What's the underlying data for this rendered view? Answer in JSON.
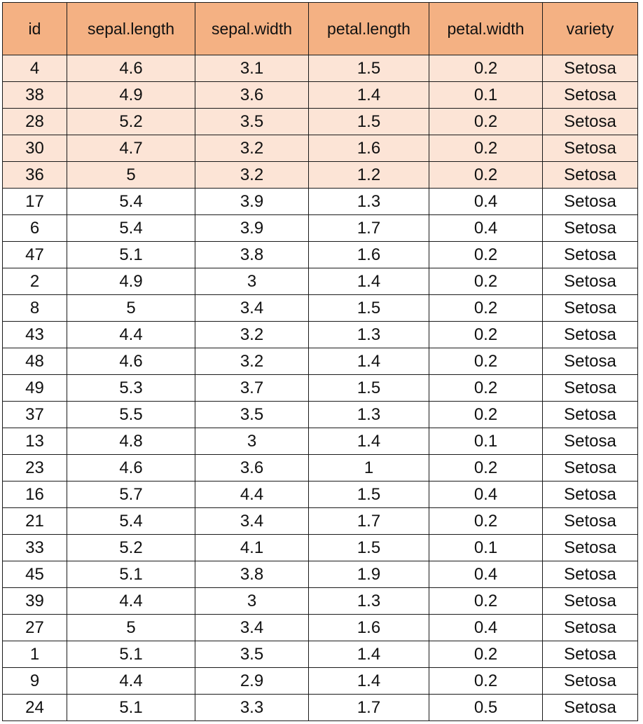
{
  "table": {
    "columns": [
      "id",
      "sepal.length",
      "sepal.width",
      "petal.length",
      "petal.width",
      "variety"
    ],
    "header_color": "#f4b183",
    "highlight_color": "#fce4d6",
    "rows": [
      {
        "highlight": true,
        "cells": [
          "4",
          "4.6",
          "3.1",
          "1.5",
          "0.2",
          "Setosa"
        ]
      },
      {
        "highlight": true,
        "cells": [
          "38",
          "4.9",
          "3.6",
          "1.4",
          "0.1",
          "Setosa"
        ]
      },
      {
        "highlight": true,
        "cells": [
          "28",
          "5.2",
          "3.5",
          "1.5",
          "0.2",
          "Setosa"
        ]
      },
      {
        "highlight": true,
        "cells": [
          "30",
          "4.7",
          "3.2",
          "1.6",
          "0.2",
          "Setosa"
        ]
      },
      {
        "highlight": true,
        "cells": [
          "36",
          "5",
          "3.2",
          "1.2",
          "0.2",
          "Setosa"
        ]
      },
      {
        "highlight": false,
        "cells": [
          "17",
          "5.4",
          "3.9",
          "1.3",
          "0.4",
          "Setosa"
        ]
      },
      {
        "highlight": false,
        "cells": [
          "6",
          "5.4",
          "3.9",
          "1.7",
          "0.4",
          "Setosa"
        ]
      },
      {
        "highlight": false,
        "cells": [
          "47",
          "5.1",
          "3.8",
          "1.6",
          "0.2",
          "Setosa"
        ]
      },
      {
        "highlight": false,
        "cells": [
          "2",
          "4.9",
          "3",
          "1.4",
          "0.2",
          "Setosa"
        ]
      },
      {
        "highlight": false,
        "cells": [
          "8",
          "5",
          "3.4",
          "1.5",
          "0.2",
          "Setosa"
        ]
      },
      {
        "highlight": false,
        "cells": [
          "43",
          "4.4",
          "3.2",
          "1.3",
          "0.2",
          "Setosa"
        ]
      },
      {
        "highlight": false,
        "cells": [
          "48",
          "4.6",
          "3.2",
          "1.4",
          "0.2",
          "Setosa"
        ]
      },
      {
        "highlight": false,
        "cells": [
          "49",
          "5.3",
          "3.7",
          "1.5",
          "0.2",
          "Setosa"
        ]
      },
      {
        "highlight": false,
        "cells": [
          "37",
          "5.5",
          "3.5",
          "1.3",
          "0.2",
          "Setosa"
        ]
      },
      {
        "highlight": false,
        "cells": [
          "13",
          "4.8",
          "3",
          "1.4",
          "0.1",
          "Setosa"
        ]
      },
      {
        "highlight": false,
        "cells": [
          "23",
          "4.6",
          "3.6",
          "1",
          "0.2",
          "Setosa"
        ]
      },
      {
        "highlight": false,
        "cells": [
          "16",
          "5.7",
          "4.4",
          "1.5",
          "0.4",
          "Setosa"
        ]
      },
      {
        "highlight": false,
        "cells": [
          "21",
          "5.4",
          "3.4",
          "1.7",
          "0.2",
          "Setosa"
        ]
      },
      {
        "highlight": false,
        "cells": [
          "33",
          "5.2",
          "4.1",
          "1.5",
          "0.1",
          "Setosa"
        ]
      },
      {
        "highlight": false,
        "cells": [
          "45",
          "5.1",
          "3.8",
          "1.9",
          "0.4",
          "Setosa"
        ]
      },
      {
        "highlight": false,
        "cells": [
          "39",
          "4.4",
          "3",
          "1.3",
          "0.2",
          "Setosa"
        ]
      },
      {
        "highlight": false,
        "cells": [
          "27",
          "5",
          "3.4",
          "1.6",
          "0.4",
          "Setosa"
        ]
      },
      {
        "highlight": false,
        "cells": [
          "1",
          "5.1",
          "3.5",
          "1.4",
          "0.2",
          "Setosa"
        ]
      },
      {
        "highlight": false,
        "cells": [
          "9",
          "4.4",
          "2.9",
          "1.4",
          "0.2",
          "Setosa"
        ]
      },
      {
        "highlight": false,
        "cells": [
          "24",
          "5.1",
          "3.3",
          "1.7",
          "0.5",
          "Setosa"
        ]
      }
    ]
  }
}
